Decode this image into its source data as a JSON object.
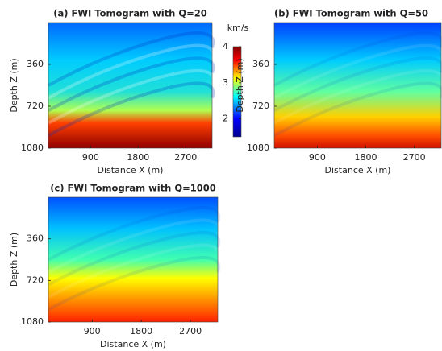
{
  "chart_data": [
    {
      "type": "heatmap",
      "title": "(a) FWI Tomogram with Q=20",
      "xlabel": "Distance X (m)",
      "ylabel": "Depth Z (m)",
      "xlim": [
        100,
        3200
      ],
      "ylim": [
        0,
        1080
      ],
      "xticks": [
        900,
        1800,
        2700
      ],
      "yticks": [
        360,
        720,
        1080
      ],
      "colormap": "jet",
      "colorbar": {
        "label": "km/s",
        "lim": [
          1.5,
          4
        ],
        "ticks": [
          2,
          3,
          4
        ]
      }
    },
    {
      "type": "heatmap",
      "title": "(b) FWI Tomogram with Q=50",
      "xlabel": "Distance X (m)",
      "ylabel": "Depth Z (m)",
      "xlim": [
        100,
        3200
      ],
      "ylim": [
        0,
        1080
      ],
      "xticks": [
        900,
        1800,
        2700
      ],
      "yticks": [
        360,
        720,
        1080
      ],
      "colormap": "jet"
    },
    {
      "type": "heatmap",
      "title": "(c) FWI Tomogram with Q=1000",
      "xlabel": "Distance X (m)",
      "ylabel": "Depth Z (m)",
      "xlim": [
        100,
        3200
      ],
      "ylim": [
        0,
        1080
      ],
      "xticks": [
        900,
        1800,
        2700
      ],
      "yticks": [
        360,
        720,
        1080
      ],
      "colormap": "jet"
    }
  ]
}
